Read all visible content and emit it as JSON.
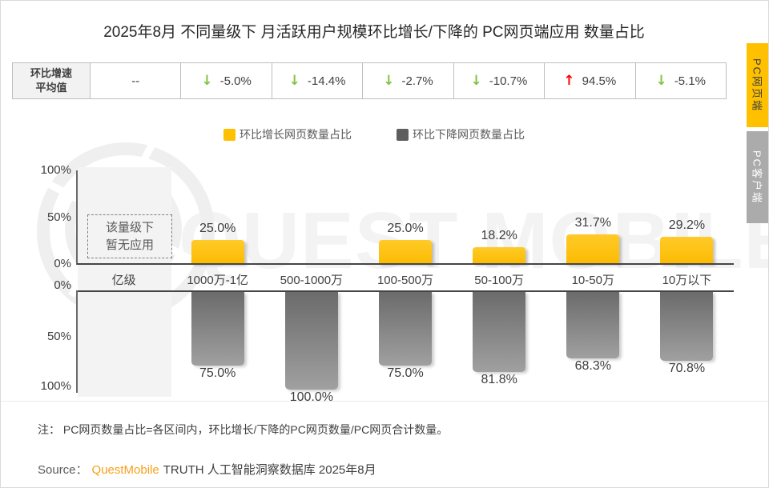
{
  "page_title": "2025年8月 不同量级下 月活跃用户规模环比增长/下降的 PC网页端应用 数量占比",
  "summary_row": {
    "header_line1": "环比增速",
    "header_line2": "平均值",
    "cells": [
      {
        "arrow": "",
        "value": "--"
      },
      {
        "arrow": "down",
        "value": "-5.0%"
      },
      {
        "arrow": "down",
        "value": "-14.4%"
      },
      {
        "arrow": "down",
        "value": "-2.7%"
      },
      {
        "arrow": "down",
        "value": "-10.7%"
      },
      {
        "arrow": "up",
        "value": "94.5%"
      },
      {
        "arrow": "down",
        "value": "-5.1%"
      }
    ]
  },
  "status_colors": {
    "up": "#ff0000",
    "down": "#82c341"
  },
  "legend": [
    {
      "label": "环比增长网页数量占比",
      "color": "#ffc000"
    },
    {
      "label": "环比下降网页数量占比",
      "color": "#5e5e5e"
    }
  ],
  "chart_data": {
    "type": "bar",
    "categories": [
      "亿级",
      "1000万-1亿",
      "500-1000万",
      "100-500万",
      "50-100万",
      "10-50万",
      "10万以下"
    ],
    "series": [
      {
        "name": "环比增长网页数量占比",
        "color": "#ffc000",
        "values": [
          null,
          25.0,
          null,
          25.0,
          18.2,
          31.7,
          29.2
        ],
        "labels": [
          null,
          "25.0%",
          null,
          "25.0%",
          "18.2%",
          "31.7%",
          "29.2%"
        ]
      },
      {
        "name": "环比下降网页数量占比",
        "color": "#787878",
        "values": [
          null,
          75.0,
          100.0,
          75.0,
          81.8,
          68.3,
          70.8
        ],
        "labels": [
          null,
          "75.0%",
          "100.0%",
          "75.0%",
          "81.8%",
          "68.3%",
          "70.8%"
        ]
      }
    ],
    "avg_growth_row_label": "环比增速平均值",
    "avg_growth_values": [
      "--",
      "-5.0%",
      "-14.4%",
      "-2.7%",
      "-10.7%",
      "94.5%",
      "-5.1%"
    ],
    "top_axis_ticks": [
      "100%",
      "50%",
      "0%"
    ],
    "bottom_axis_ticks": [
      "0%",
      "50%",
      "100%"
    ],
    "ylim_top": [
      0,
      100
    ],
    "ylim_bottom": [
      0,
      100
    ],
    "grid": false,
    "legend_position": "top",
    "no_data_note": {
      "line1": "该量级下",
      "line2": "暂无应用"
    }
  },
  "side_tabs": [
    {
      "label": "PC网页端",
      "active": true
    },
    {
      "label": "PC客户端",
      "active": false
    }
  ],
  "note": "注： PC网页数量占比=各区间内，环比增长/下降的PC网页数量/PC网页合计数量。",
  "source": {
    "prefix": "Source：",
    "brand": "QuestMobile",
    "rest": "TRUTH 人工智能洞察数据库 2025年8月"
  },
  "watermark": {
    "text": "QUEST MOBILE"
  }
}
